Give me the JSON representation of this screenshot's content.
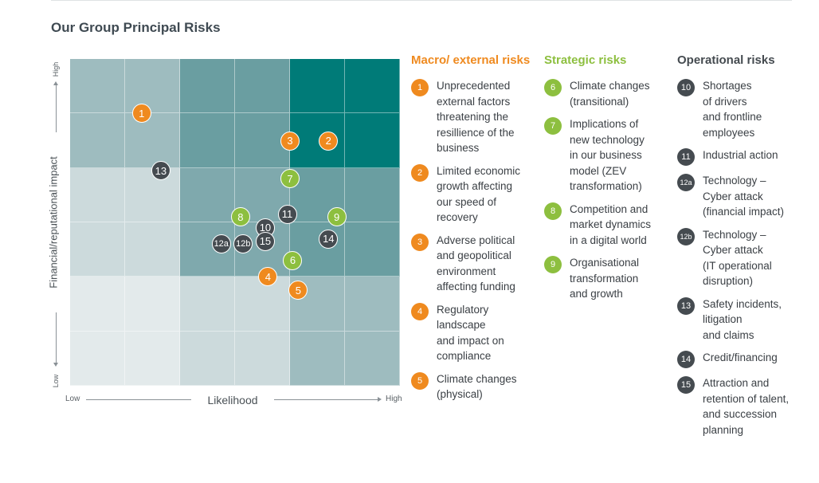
{
  "page_title": "Our Group Principal Risks",
  "colors": {
    "macro": "#ef8a1f",
    "strategic": "#8dbf3f",
    "operational": "#454b50",
    "grid_low": "#e4ebec",
    "grid_mid": "#9ebcbf",
    "grid_high": "#007b78"
  },
  "chart_data": {
    "type": "scatter",
    "grid_size": [
      6,
      6
    ],
    "cell_color_levels": [
      [
        2,
        2,
        4,
        4,
        5,
        5
      ],
      [
        2,
        2,
        4,
        4,
        5,
        5
      ],
      [
        1,
        1,
        3,
        3,
        4,
        4
      ],
      [
        1,
        1,
        3,
        3,
        4,
        4
      ],
      [
        0,
        0,
        1,
        1,
        2,
        2
      ],
      [
        0,
        0,
        1,
        1,
        2,
        2
      ]
    ],
    "xlabel": "Likelihood",
    "ylabel": "Financial/reputational impact",
    "x_low_label": "Low",
    "x_high_label": "High",
    "y_low_label": "Low",
    "y_high_label": "High",
    "xlim": [
      0,
      6
    ],
    "ylim": [
      0,
      6
    ],
    "points": [
      {
        "label": "1",
        "category": "macro",
        "x": 1.3,
        "y": 5.0
      },
      {
        "label": "2",
        "category": "macro",
        "x": 4.7,
        "y": 4.5
      },
      {
        "label": "3",
        "category": "macro",
        "x": 4.0,
        "y": 4.5
      },
      {
        "label": "4",
        "category": "macro",
        "x": 3.6,
        "y": 2.0
      },
      {
        "label": "5",
        "category": "macro",
        "x": 4.15,
        "y": 1.75
      },
      {
        "label": "6",
        "category": "strategic",
        "x": 4.05,
        "y": 2.3
      },
      {
        "label": "7",
        "category": "strategic",
        "x": 4.0,
        "y": 3.8
      },
      {
        "label": "8",
        "category": "strategic",
        "x": 3.1,
        "y": 3.1
      },
      {
        "label": "9",
        "category": "strategic",
        "x": 4.85,
        "y": 3.1
      },
      {
        "label": "10",
        "category": "operational",
        "x": 3.55,
        "y": 2.9
      },
      {
        "label": "11",
        "category": "operational",
        "x": 3.95,
        "y": 3.15
      },
      {
        "label": "12a",
        "category": "operational",
        "x": 2.75,
        "y": 2.6
      },
      {
        "label": "12b",
        "category": "operational",
        "x": 3.15,
        "y": 2.6
      },
      {
        "label": "13",
        "category": "operational",
        "x": 1.65,
        "y": 3.95
      },
      {
        "label": "14",
        "category": "operational",
        "x": 4.7,
        "y": 2.7
      },
      {
        "label": "15",
        "category": "operational",
        "x": 3.55,
        "y": 2.65
      }
    ]
  },
  "legend": {
    "macro": {
      "title": "Macro/\nexternal risks",
      "items": [
        {
          "num": "1",
          "text": "Unprecedented\nexternal factors\nthreatening the\nresillience of the\nbusiness"
        },
        {
          "num": "2",
          "text": "Limited economic\ngrowth affecting\nour speed of\nrecovery"
        },
        {
          "num": "3",
          "text": "Adverse political\nand geopolitical\nenvironment\naffecting funding"
        },
        {
          "num": "4",
          "text": "Regulatory\nlandscape\nand impact on\ncompliance"
        },
        {
          "num": "5",
          "text": "Climate changes\n(physical)"
        }
      ]
    },
    "strategic": {
      "title": "Strategic risks",
      "items": [
        {
          "num": "6",
          "text": "Climate changes\n(transitional)"
        },
        {
          "num": "7",
          "text": "Implications of\nnew technology\nin our business\nmodel (ZEV\ntransformation)"
        },
        {
          "num": "8",
          "text": "Competition and\nmarket dynamics\nin a digital world"
        },
        {
          "num": "9",
          "text": "Organisational\ntransformation\nand growth"
        }
      ]
    },
    "operational": {
      "title": "Operational risks",
      "items": [
        {
          "num": "10",
          "text": "Shortages\nof drivers\nand frontline\nemployees"
        },
        {
          "num": "11",
          "text": "Industrial action"
        },
        {
          "num": "12a",
          "text": "Technology –\nCyber attack\n(financial impact)"
        },
        {
          "num": "12b",
          "text": "Technology –\nCyber attack\n(IT operational\ndisruption)"
        },
        {
          "num": "13",
          "text": "Safety incidents,\nlitigation\nand claims"
        },
        {
          "num": "14",
          "text": "Credit/financing"
        },
        {
          "num": "15",
          "text": "Attraction and\nretention of talent,\nand succession\nplanning"
        }
      ]
    }
  }
}
